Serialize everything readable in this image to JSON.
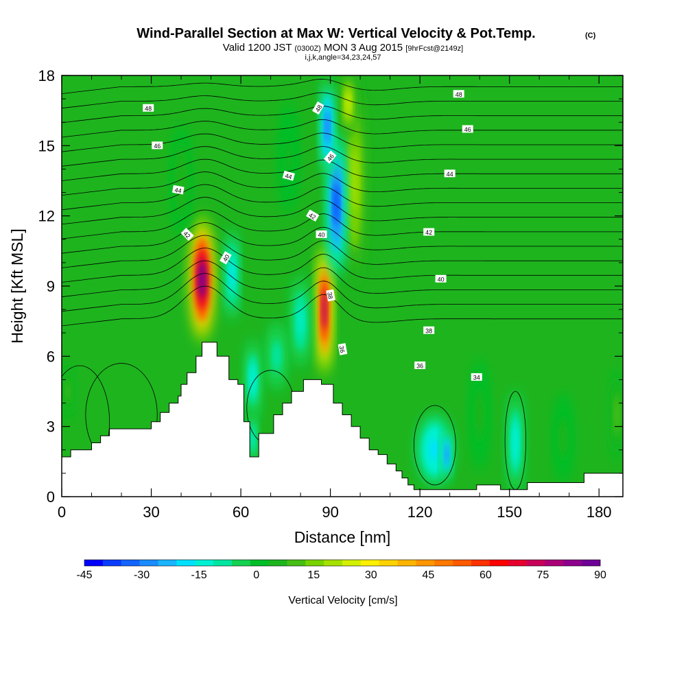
{
  "chart_data": {
    "type": "heatmap",
    "title": "Wind-Parallel Section at Max W: Vertical Velocity & Pot.Temp.",
    "title_mark": "(C)",
    "subtitle": {
      "valid": "Valid 1200 JST",
      "utc": "(0300Z)",
      "date": "MON 3 Aug 2015",
      "forecast": "[9hrFcst@2149z]"
    },
    "section_info": "i,j,k,angle=34,23,24,57",
    "xlabel": "Distance [nm]",
    "ylabel": "Height [Kft MSL]",
    "xlim": [
      0,
      188
    ],
    "ylim": [
      0,
      18
    ],
    "x_ticks": [
      "0",
      "30",
      "60",
      "90",
      "120",
      "150",
      "180"
    ],
    "y_ticks": [
      "0",
      "3",
      "6",
      "9",
      "12",
      "15",
      "18"
    ],
    "grid": false,
    "colorbar": {
      "title": "Vertical Velocity [cm/s]",
      "tick_labels": [
        "-45",
        "-30",
        "-15",
        "0",
        "15",
        "30",
        "45",
        "60",
        "75",
        "90"
      ],
      "range": [
        -45,
        90
      ],
      "colors": [
        "#0000ff",
        "#0a3cff",
        "#1464ff",
        "#1a8cff",
        "#1ab4ff",
        "#00e1ff",
        "#00f0d2",
        "#00e6a0",
        "#14d250",
        "#00be28",
        "#1eb41e",
        "#46be14",
        "#78d200",
        "#a5e100",
        "#d2f000",
        "#fff000",
        "#ffd200",
        "#ffb400",
        "#ff9600",
        "#ff7800",
        "#ff5a00",
        "#ff3200",
        "#ff0000",
        "#e6002d",
        "#c8005a",
        "#aa0078",
        "#8c008c",
        "#6e0096"
      ]
    },
    "background_color": "#1eb41e",
    "terrain_kft": [
      [
        0,
        1.7
      ],
      [
        3,
        1.7
      ],
      [
        3,
        2.0
      ],
      [
        10,
        2.0
      ],
      [
        10,
        2.3
      ],
      [
        13,
        2.3
      ],
      [
        13,
        2.6
      ],
      [
        16,
        2.6
      ],
      [
        16,
        2.9
      ],
      [
        30,
        2.9
      ],
      [
        30,
        3.2
      ],
      [
        33,
        3.2
      ],
      [
        33,
        3.6
      ],
      [
        36,
        3.6
      ],
      [
        36,
        4.0
      ],
      [
        39,
        4.0
      ],
      [
        39,
        4.3
      ],
      [
        40,
        4.3
      ],
      [
        40,
        4.8
      ],
      [
        42,
        4.8
      ],
      [
        42,
        5.3
      ],
      [
        45,
        5.3
      ],
      [
        45,
        6.0
      ],
      [
        47,
        6.0
      ],
      [
        47,
        6.6
      ],
      [
        52,
        6.6
      ],
      [
        52,
        6.0
      ],
      [
        56,
        6.0
      ],
      [
        56,
        5.0
      ],
      [
        59,
        5.0
      ],
      [
        59,
        4.8
      ],
      [
        61,
        4.8
      ],
      [
        61,
        3.2
      ],
      [
        63,
        3.2
      ],
      [
        63,
        1.7
      ],
      [
        66,
        1.7
      ],
      [
        66,
        2.7
      ],
      [
        71,
        2.7
      ],
      [
        71,
        3.5
      ],
      [
        74,
        3.5
      ],
      [
        74,
        4.0
      ],
      [
        77,
        4.0
      ],
      [
        77,
        4.5
      ],
      [
        81,
        4.5
      ],
      [
        81,
        5.0
      ],
      [
        87,
        5.0
      ],
      [
        87,
        4.8
      ],
      [
        91,
        4.8
      ],
      [
        91,
        4.0
      ],
      [
        94,
        4.0
      ],
      [
        94,
        3.5
      ],
      [
        97,
        3.5
      ],
      [
        97,
        3.0
      ],
      [
        100,
        3.0
      ],
      [
        100,
        2.5
      ],
      [
        103,
        2.5
      ],
      [
        103,
        2.0
      ],
      [
        106,
        2.0
      ],
      [
        106,
        1.8
      ],
      [
        109,
        1.8
      ],
      [
        109,
        1.4
      ],
      [
        112,
        1.4
      ],
      [
        112,
        1.1
      ],
      [
        114,
        1.1
      ],
      [
        114,
        0.8
      ],
      [
        116,
        0.8
      ],
      [
        116,
        0.5
      ],
      [
        118,
        0.5
      ],
      [
        118,
        0.3
      ],
      [
        139,
        0.3
      ],
      [
        139,
        0.5
      ],
      [
        147,
        0.5
      ],
      [
        147,
        0.3
      ],
      [
        156,
        0.3
      ],
      [
        156,
        0.6
      ],
      [
        175,
        0.6
      ],
      [
        175,
        1.0
      ],
      [
        188,
        1.0
      ]
    ],
    "vertical_velocity_features": [
      {
        "x": 47,
        "y": 9.3,
        "w": 87,
        "rx": 4.2,
        "ry": 2.8
      },
      {
        "x": 88,
        "y": 8.0,
        "w": 76,
        "rx": 2.6,
        "ry": 3.0
      },
      {
        "x": 98,
        "y": 13.5,
        "w": 22,
        "rx": 3.8,
        "ry": 4.5
      },
      {
        "x": 96,
        "y": 16.8,
        "w": 25,
        "rx": 2.5,
        "ry": 1.6
      },
      {
        "x": 92,
        "y": 12.5,
        "w": -38,
        "rx": 2.8,
        "ry": 3.2
      },
      {
        "x": 89,
        "y": 15.8,
        "w": -32,
        "rx": 2.2,
        "ry": 2.2
      },
      {
        "x": 57,
        "y": 9.5,
        "w": -18,
        "rx": 2.2,
        "ry": 2.0
      },
      {
        "x": 64,
        "y": 5.0,
        "w": -15,
        "rx": 2.5,
        "ry": 1.8
      },
      {
        "x": 64,
        "y": 2.5,
        "w": -14,
        "rx": 1.5,
        "ry": 1.2
      },
      {
        "x": 80,
        "y": 7.5,
        "w": -12,
        "rx": 3.0,
        "ry": 2.0
      },
      {
        "x": 72,
        "y": 6.0,
        "w": -10,
        "rx": 3.0,
        "ry": 1.5
      },
      {
        "x": 125,
        "y": 2.0,
        "w": -20,
        "rx": 6.0,
        "ry": 1.6
      },
      {
        "x": 129,
        "y": 1.8,
        "w": -28,
        "rx": 1.6,
        "ry": 1.2
      },
      {
        "x": 152,
        "y": 2.3,
        "w": -15,
        "rx": 2.6,
        "ry": 2.3
      },
      {
        "x": 2,
        "y": 4.5,
        "w": 10,
        "rx": 2.0,
        "ry": 1.2
      },
      {
        "x": 186,
        "y": 3.5,
        "w": 11,
        "rx": 2.0,
        "ry": 2.0
      },
      {
        "x": 140,
        "y": 3.5,
        "w": 5,
        "rx": 3.0,
        "ry": 2.5
      },
      {
        "x": 168,
        "y": 2.5,
        "w": 5,
        "rx": 3.0,
        "ry": 2.0
      },
      {
        "x": 40,
        "y": 13.5,
        "w": 6,
        "rx": 3.0,
        "ry": 2.5
      },
      {
        "x": 76,
        "y": 14.5,
        "w": 4,
        "rx": 3.0,
        "ry": 2.5
      }
    ],
    "contour_labels": [
      {
        "text": "48",
        "x": 29,
        "y": 16.6,
        "angle": 0
      },
      {
        "text": "48",
        "x": 86,
        "y": 16.6,
        "angle": 60
      },
      {
        "text": "48",
        "x": 133,
        "y": 17.2,
        "angle": 0
      },
      {
        "text": "46",
        "x": 32,
        "y": 15.0,
        "angle": 0
      },
      {
        "text": "46",
        "x": 90,
        "y": 14.5,
        "angle": 50
      },
      {
        "text": "46",
        "x": 136,
        "y": 15.7,
        "angle": 0
      },
      {
        "text": "44",
        "x": 39,
        "y": 13.1,
        "angle": -10
      },
      {
        "text": "44",
        "x": 76,
        "y": 13.7,
        "angle": -15
      },
      {
        "text": "44",
        "x": 130,
        "y": 13.8,
        "angle": 0
      },
      {
        "text": "42",
        "x": 42,
        "y": 11.2,
        "angle": -45
      },
      {
        "text": "42",
        "x": 84,
        "y": 12.0,
        "angle": -30
      },
      {
        "text": "42",
        "x": 123,
        "y": 11.3,
        "angle": 0
      },
      {
        "text": "40",
        "x": 55,
        "y": 10.2,
        "angle": 60
      },
      {
        "text": "40",
        "x": 87,
        "y": 11.2,
        "angle": 0
      },
      {
        "text": "40",
        "x": 127,
        "y": 9.3,
        "angle": 0
      },
      {
        "text": "38",
        "x": 90,
        "y": 8.6,
        "angle": -80
      },
      {
        "text": "38",
        "x": 123,
        "y": 7.1,
        "angle": 0
      },
      {
        "text": "36",
        "x": 94,
        "y": 6.3,
        "angle": -80
      },
      {
        "text": "36",
        "x": 120,
        "y": 5.6,
        "angle": 0
      },
      {
        "text": "34",
        "x": 139,
        "y": 5.1,
        "angle": 0
      }
    ]
  }
}
